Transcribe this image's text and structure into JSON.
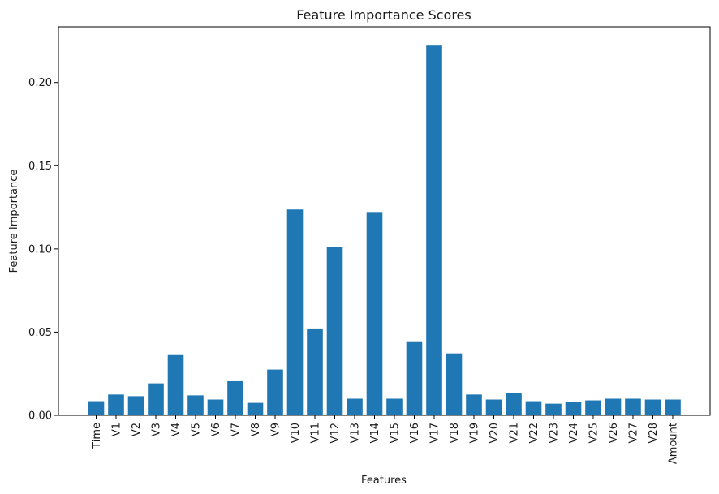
{
  "colors": {
    "bar": "#1f77b4",
    "axis": "#000000",
    "text": "#1a1a1a",
    "background": "#ffffff"
  },
  "chart_data": {
    "type": "bar",
    "title": "Feature Importance Scores",
    "xlabel": "Features",
    "ylabel": "Feature Importance",
    "categories": [
      "Time",
      "V1",
      "V2",
      "V3",
      "V4",
      "V5",
      "V6",
      "V7",
      "V8",
      "V9",
      "V10",
      "V11",
      "V12",
      "V13",
      "V14",
      "V15",
      "V16",
      "V17",
      "V18",
      "V19",
      "V20",
      "V21",
      "V22",
      "V23",
      "V24",
      "V25",
      "V26",
      "V27",
      "V28",
      "Amount"
    ],
    "values": [
      0.0085,
      0.0125,
      0.0115,
      0.0192,
      0.0362,
      0.012,
      0.0095,
      0.0205,
      0.0075,
      0.0275,
      0.1237,
      0.0522,
      0.1012,
      0.01,
      0.1222,
      0.01,
      0.0445,
      0.2222,
      0.0372,
      0.0125,
      0.0095,
      0.0135,
      0.0085,
      0.007,
      0.008,
      0.009,
      0.01,
      0.01,
      0.0095,
      0.0095
    ],
    "yticks": [
      0.0,
      0.05,
      0.1,
      0.15,
      0.2
    ],
    "ytick_labels": [
      "0.00",
      "0.05",
      "0.10",
      "0.15",
      "0.20"
    ],
    "ylim": [
      0,
      0.2335
    ],
    "grid": false,
    "legend": false
  }
}
